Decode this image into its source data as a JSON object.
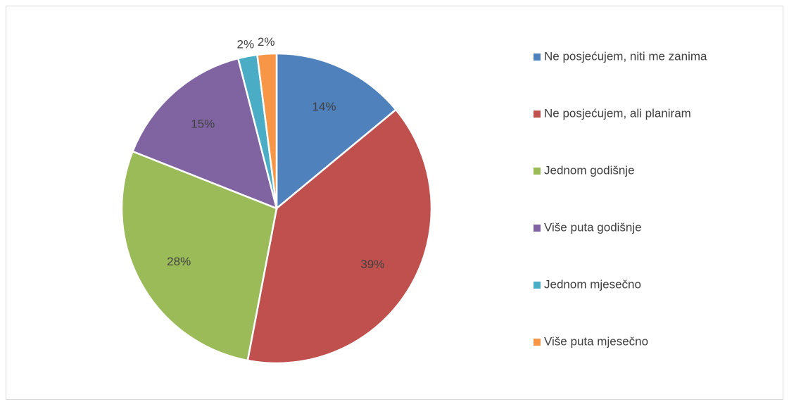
{
  "chart_data": {
    "type": "pie",
    "categories": [
      "Ne posjećujem, niti me zanima",
      "Ne posjećujem, ali planiram",
      "Jednom godišnje",
      "Više puta godišnje",
      "Jednom mjesečno",
      "Više puta mjesečno"
    ],
    "values": [
      14,
      39,
      28,
      15,
      2,
      2
    ],
    "value_labels": [
      "14%",
      "39%",
      "28%",
      "15%",
      "2%",
      "2%"
    ],
    "colors": [
      "#4f81bd",
      "#c0504d",
      "#9bbb59",
      "#8064a2",
      "#4bacc6",
      "#f79646"
    ],
    "legend": "right"
  }
}
